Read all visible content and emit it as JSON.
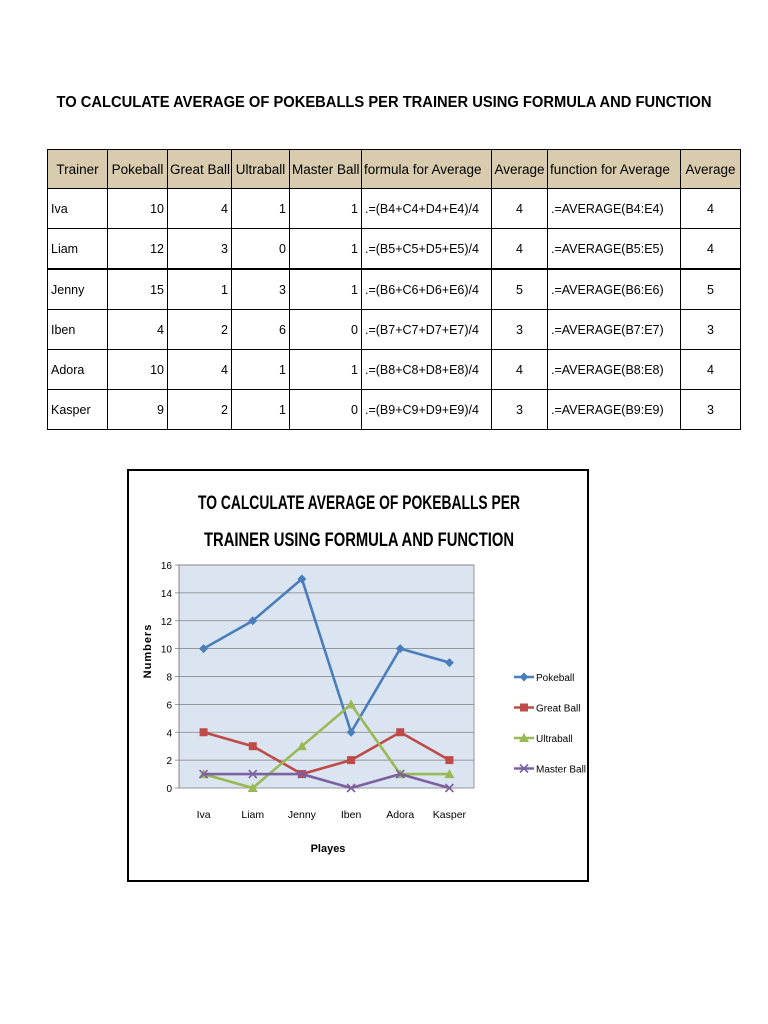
{
  "title": "TO  CALCULATE AVERAGE OF POKEBALLS PER TRAINER USING FORMULA AND FUNCTION",
  "table": {
    "headers": [
      "Trainer",
      "Pokeball",
      "Great Ball",
      "Ultraball",
      "Master Ball",
      "formula for Average",
      "Average",
      "function for Average",
      "Average"
    ],
    "rows": [
      {
        "trainer": "Iva",
        "pokeball": "10",
        "great": "4",
        "ultra": "1",
        "master": "1",
        "formula": ".=(B4+C4+D4+E4)/4",
        "avg1": "4",
        "function": ".=AVERAGE(B4:E4)",
        "avg2": "4"
      },
      {
        "trainer": "Liam",
        "pokeball": "12",
        "great": "3",
        "ultra": "0",
        "master": "1",
        "formula": ".=(B5+C5+D5+E5)/4",
        "avg1": "4",
        "function": ".=AVERAGE(B5:E5)",
        "avg2": "4"
      },
      {
        "trainer": "Jenny",
        "pokeball": "15",
        "great": "1",
        "ultra": "3",
        "master": "1",
        "formula": ".=(B6+C6+D6+E6)/4",
        "avg1": "5",
        "function": ".=AVERAGE(B6:E6)",
        "avg2": "5"
      },
      {
        "trainer": "Iben",
        "pokeball": "4",
        "great": "2",
        "ultra": "6",
        "master": "0",
        "formula": ".=(B7+C7+D7+E7)/4",
        "avg1": "3",
        "function": ".=AVERAGE(B7:E7)",
        "avg2": "3"
      },
      {
        "trainer": "Adora",
        "pokeball": "10",
        "great": "4",
        "ultra": "1",
        "master": "1",
        "formula": ".=(B8+C8+D8+E8)/4",
        "avg1": "4",
        "function": ".=AVERAGE(B8:E8)",
        "avg2": "4"
      },
      {
        "trainer": "Kasper",
        "pokeball": "9",
        "great": "2",
        "ultra": "1",
        "master": "0",
        "formula": ".=(B9+C9+D9+E9)/4",
        "avg1": "3",
        "function": ".=AVERAGE(B9:E9)",
        "avg2": "3"
      }
    ]
  },
  "chart_data": {
    "type": "line",
    "title_lines": [
      "TO  CALCULATE AVERAGE OF POKEBALLS PER",
      "TRAINER USING FORMULA AND FUNCTION"
    ],
    "xlabel": "Playes",
    "ylabel": "Numbers",
    "categories": [
      "Iva",
      "Liam",
      "Jenny",
      "Iben",
      "Adora",
      "Kasper"
    ],
    "ylim": [
      0,
      16
    ],
    "yticks": [
      "0",
      "2",
      "4",
      "6",
      "8",
      "10",
      "12",
      "14",
      "16"
    ],
    "grid": true,
    "legend_position": "right",
    "plot_background": "#dbe5f1",
    "series": [
      {
        "name": "Pokeball",
        "values": [
          10,
          12,
          15,
          4,
          10,
          9
        ],
        "color": "#4a7ebb",
        "marker": "diamond"
      },
      {
        "name": "Great Ball",
        "values": [
          4,
          3,
          1,
          2,
          4,
          2
        ],
        "color": "#be4b48",
        "marker": "square"
      },
      {
        "name": "Ultraball",
        "values": [
          1,
          0,
          3,
          6,
          1,
          1
        ],
        "color": "#98b954",
        "marker": "triangle"
      },
      {
        "name": "Master Ball",
        "values": [
          1,
          1,
          1,
          0,
          1,
          0
        ],
        "color": "#7d60a0",
        "marker": "x"
      }
    ]
  }
}
